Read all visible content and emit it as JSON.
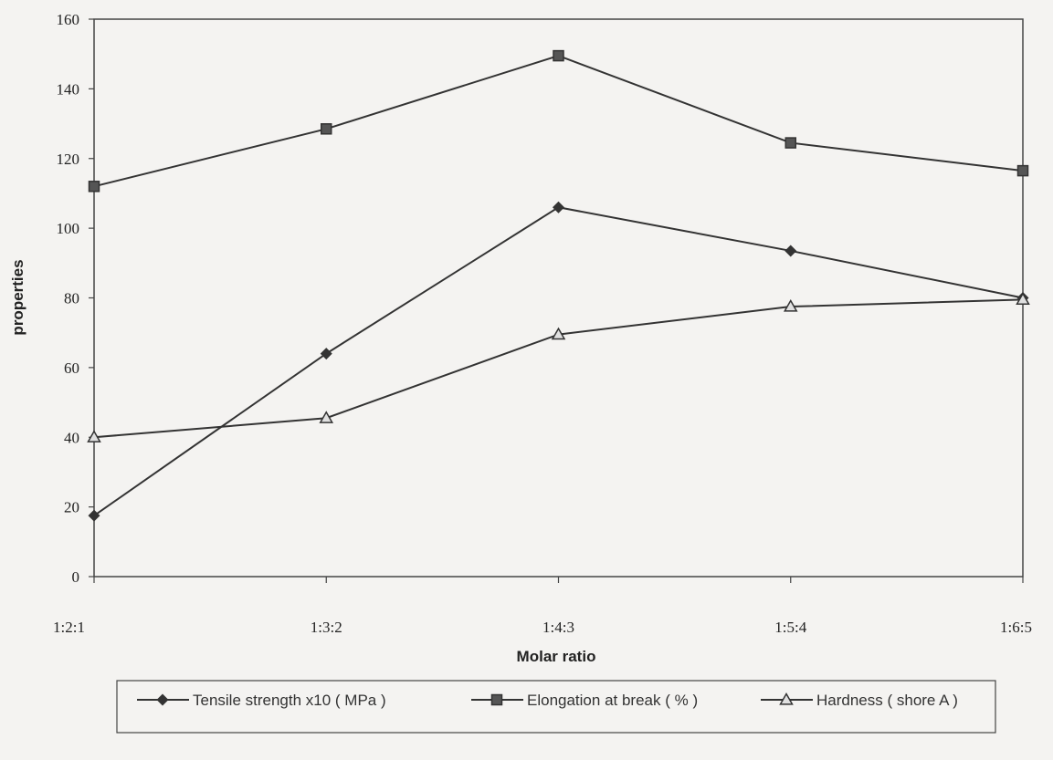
{
  "chart_data": {
    "type": "line",
    "categories": [
      "1:2:1",
      "1:3:2",
      "1:4:3",
      "1:5:4",
      "1:6:5"
    ],
    "series": [
      {
        "name": "Tensile strength x10 ( MPa )",
        "marker": "diamond",
        "values": [
          17.5,
          64,
          106,
          93.5,
          80
        ]
      },
      {
        "name": "Elongation at break  ( % )",
        "marker": "square",
        "values": [
          112,
          128.5,
          149.5,
          124.5,
          116.5
        ]
      },
      {
        "name": "Hardness ( shore A )",
        "marker": "triangle",
        "values": [
          40,
          45.5,
          69.5,
          77.5,
          79.5
        ]
      }
    ],
    "xlabel": "Molar ratio",
    "ylabel": "properties",
    "ylim": [
      0,
      160
    ],
    "yticks": [
      0,
      20,
      40,
      60,
      80,
      100,
      120,
      140,
      160
    ],
    "grid": false,
    "legend_position": "bottom",
    "colors": {
      "line": "#333333",
      "axis": "#444444"
    }
  }
}
